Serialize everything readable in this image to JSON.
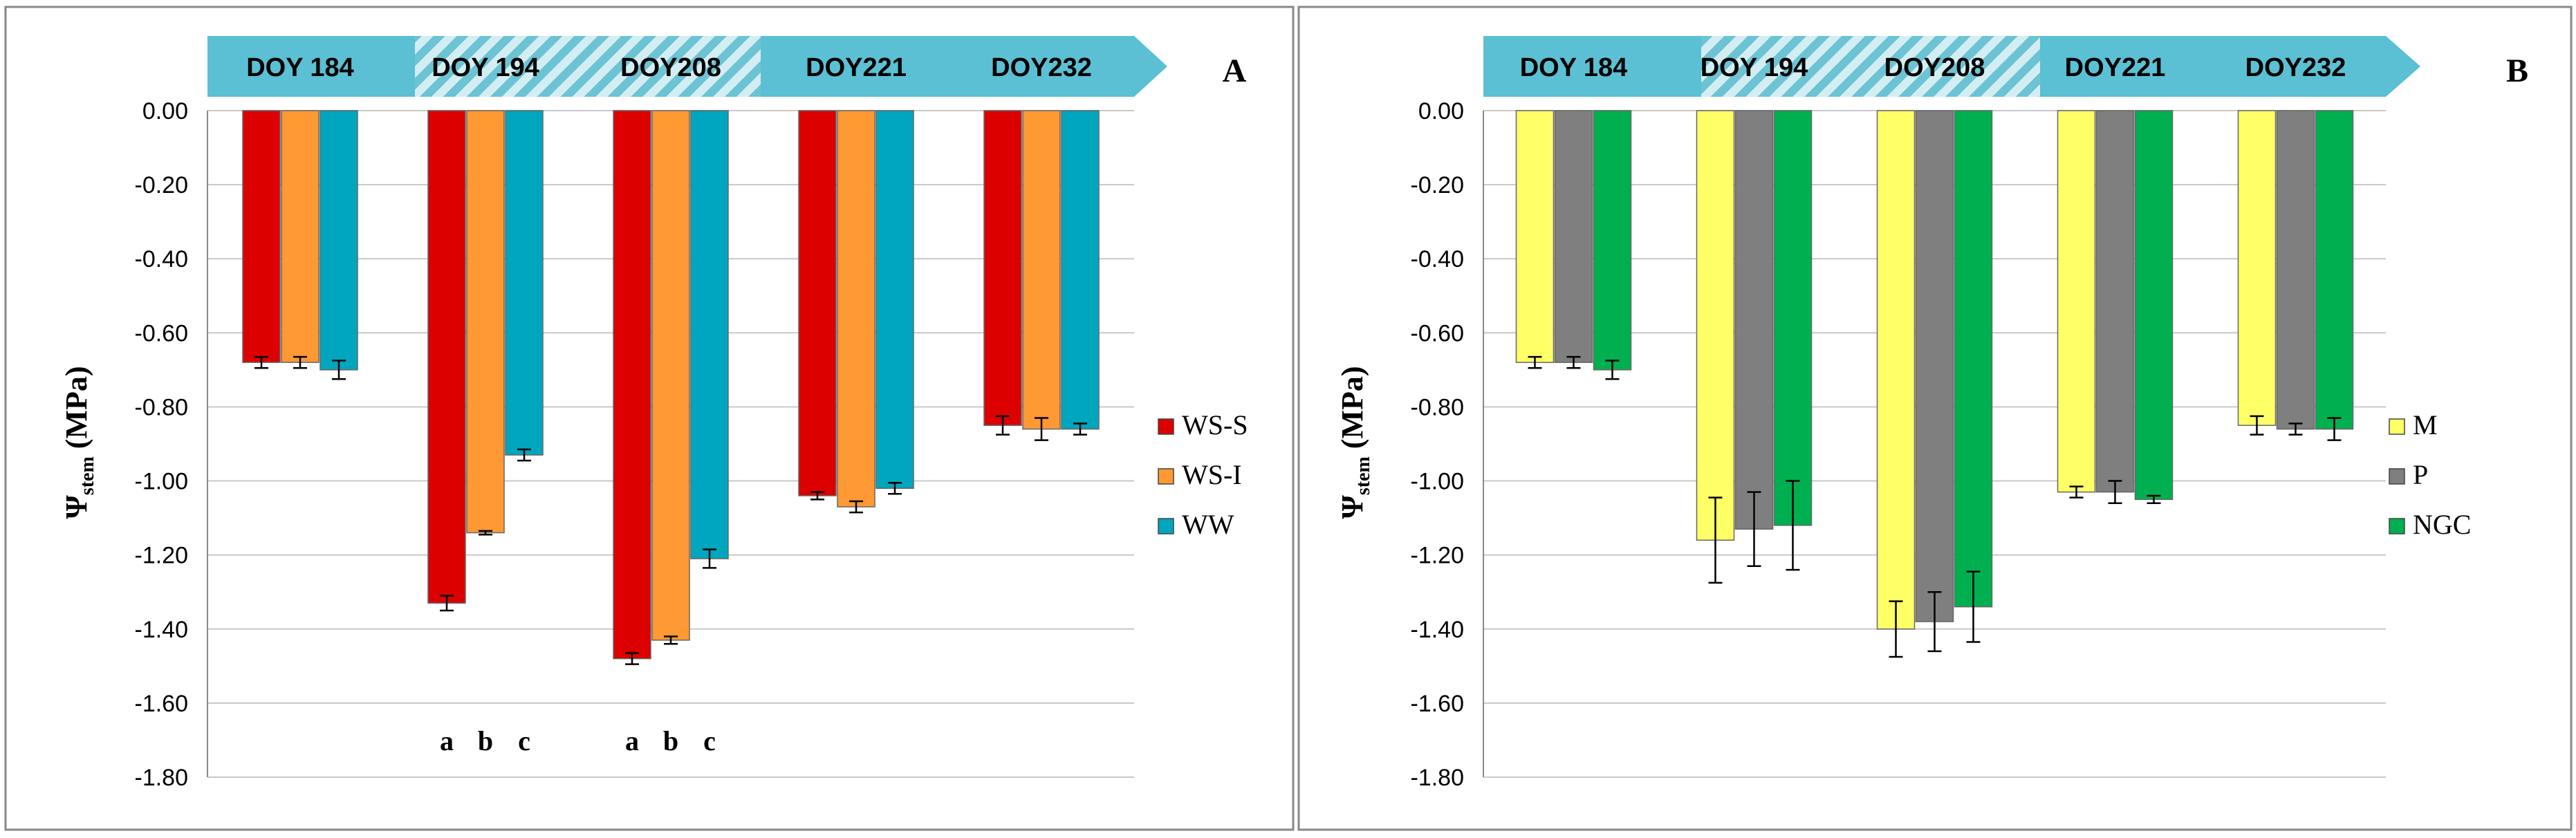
{
  "figure": {
    "y_ticks": [
      "0.00",
      "-0.20",
      "-0.40",
      "-0.60",
      "-0.80",
      "-1.00",
      "-1.20",
      "-1.40",
      "-1.60",
      "-1.80"
    ]
  },
  "chart_data": [
    {
      "type": "bar",
      "panel_label": "A",
      "title": "",
      "ylabel_main": "Ψ",
      "ylabel_sub": "stem",
      "ylabel_unit": "(MPa)",
      "ylim": [
        -1.8,
        0
      ],
      "categories": [
        "DOY 184",
        "DOY 194",
        "DOY208",
        "DOY221",
        "DOY232"
      ],
      "period_bands": [
        {
          "pattern": "solid",
          "labels": [
            "DOY 184"
          ]
        },
        {
          "pattern": "hatched",
          "labels": [
            "DOY 194",
            "DOY208"
          ]
        },
        {
          "pattern": "solid",
          "labels": [
            "DOY221",
            "DOY232"
          ]
        }
      ],
      "series": [
        {
          "name": "WS-S",
          "color": "#DD0000",
          "values": [
            -0.68,
            -1.33,
            -1.48,
            -1.04,
            -0.85
          ],
          "errors": [
            0.015,
            0.02,
            0.015,
            0.01,
            0.025
          ]
        },
        {
          "name": "WS-I",
          "color": "#FF9933",
          "values": [
            -0.68,
            -1.14,
            -1.43,
            -1.07,
            -0.86
          ],
          "errors": [
            0.015,
            0.005,
            0.01,
            0.015,
            0.03
          ]
        },
        {
          "name": "WW",
          "color": "#00A6BD",
          "values": [
            -0.7,
            -0.93,
            -1.21,
            -1.02,
            -0.86
          ],
          "errors": [
            0.025,
            0.015,
            0.025,
            0.015,
            0.015
          ]
        }
      ],
      "significance": [
        {
          "category": "DOY 194",
          "letters": [
            "a",
            "b",
            "c"
          ]
        },
        {
          "category": "DOY208",
          "letters": [
            "a",
            "b",
            "c"
          ]
        }
      ],
      "legend_position": "right",
      "grid": true
    },
    {
      "type": "bar",
      "panel_label": "B",
      "title": "",
      "ylabel_main": "Ψ",
      "ylabel_sub": "stem",
      "ylabel_unit": "(MPa)",
      "ylim": [
        -1.8,
        0
      ],
      "categories": [
        "DOY 184",
        "DOY 194",
        "DOY208",
        "DOY221",
        "DOY232"
      ],
      "period_bands": [
        {
          "pattern": "solid",
          "labels": [
            "DOY 184"
          ]
        },
        {
          "pattern": "hatched",
          "labels": [
            "DOY 194",
            "DOY208"
          ]
        },
        {
          "pattern": "solid",
          "labels": [
            "DOY221",
            "DOY232"
          ]
        }
      ],
      "series": [
        {
          "name": "M",
          "color": "#FFFF66",
          "values": [
            -0.68,
            -1.16,
            -1.4,
            -1.03,
            -0.85
          ],
          "errors": [
            0.015,
            0.115,
            0.075,
            0.015,
            0.025
          ]
        },
        {
          "name": "P",
          "color": "#7F7F7F",
          "values": [
            -0.68,
            -1.13,
            -1.38,
            -1.03,
            -0.86
          ],
          "errors": [
            0.015,
            0.1,
            0.08,
            0.03,
            0.015
          ]
        },
        {
          "name": "NGC",
          "color": "#00B050",
          "values": [
            -0.7,
            -1.12,
            -1.34,
            -1.05,
            -0.86
          ],
          "errors": [
            0.025,
            0.12,
            0.095,
            0.01,
            0.03
          ]
        }
      ],
      "significance": [],
      "legend_position": "right",
      "grid": true
    }
  ]
}
